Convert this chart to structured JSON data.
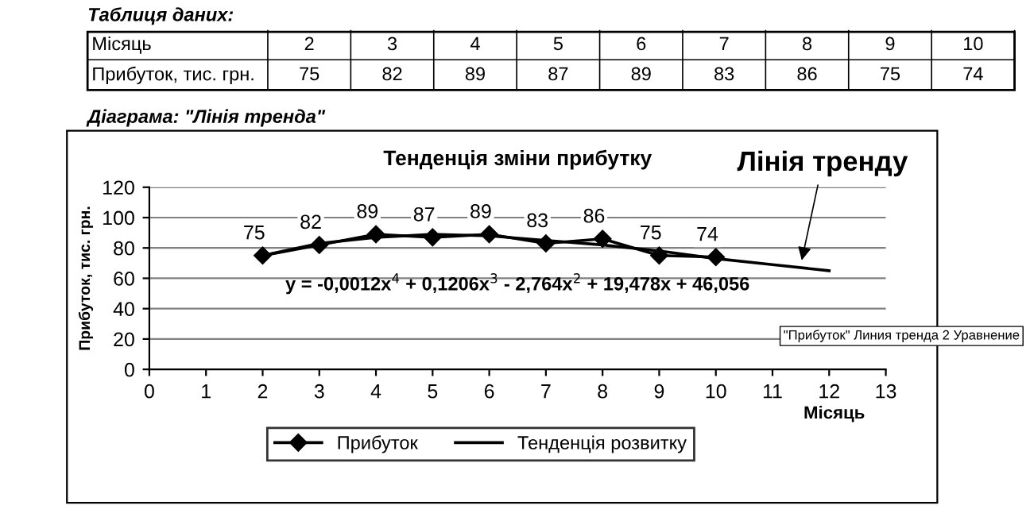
{
  "chart_data": {
    "type": "line",
    "title": "Тенденція зміни прибутку",
    "xlabel": "Місяць",
    "ylabel": "Прибуток, тис. грн.",
    "x": [
      2,
      3,
      4,
      5,
      6,
      7,
      8,
      9,
      10
    ],
    "series": [
      {
        "name": "Прибуток",
        "color": "#000000",
        "values": [
          75,
          82,
          89,
          87,
          89,
          83,
          86,
          75,
          74
        ],
        "value_labels": [
          "75",
          "82",
          "89",
          "87",
          "89",
          "83",
          "86",
          "75",
          "74"
        ],
        "marker": "diamond"
      },
      {
        "name": "Тенденція розвитку",
        "type": "line",
        "color": "#000000",
        "x": [
          2,
          3,
          4,
          5,
          6,
          7,
          8,
          9,
          10,
          11,
          12
        ],
        "values": [
          75,
          83,
          87,
          89,
          88,
          85,
          82,
          78,
          73,
          69,
          65
        ],
        "marker": "none"
      }
    ],
    "xlim": [
      0,
      13
    ],
    "xticks": [
      0,
      1,
      2,
      3,
      4,
      5,
      6,
      7,
      8,
      9,
      10,
      11,
      12,
      13
    ],
    "ylim": [
      0,
      120
    ],
    "yticks": [
      0,
      20,
      40,
      60,
      80,
      100,
      120
    ],
    "grid": "y",
    "legend": "bottom",
    "line_style": "solid",
    "annotations": [
      "Таблиця даних:",
      "Місяць",
      "2",
      "3",
      "4",
      "5",
      "6",
      "7",
      "8",
      "9",
      "10",
      "Прибуток, тис. грн.",
      "75",
      "82",
      "89",
      "87",
      "89",
      "83",
      "86",
      "75",
      "74",
      "Діаграма: \"Лінія тренда\"",
      "y = -0,0012x$^{4}$ + 0,1206x$^{3}$ - 2,764x$^{2}$ + 19,478x + 46,056",
      "\"Прибуток\" Линия тренда 2 Уравнение",
      {
        "text": "Лінія тренду",
        "x": 11.5,
        "y": 69
      }
    ]
  }
}
